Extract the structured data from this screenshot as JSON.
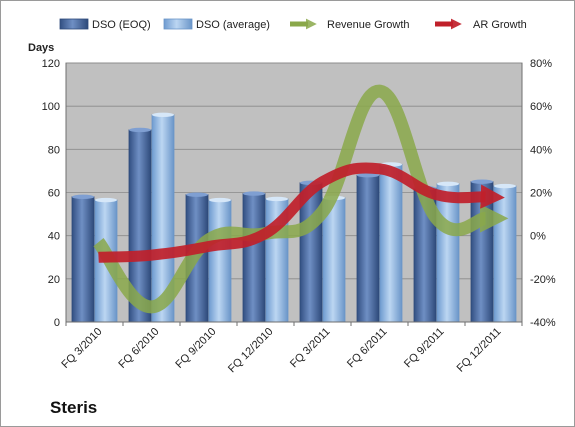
{
  "colors": {
    "dso_eoq": "#4f6fa3",
    "dso_avg": "#8db4e2",
    "revenue_growth": "#8aa84a",
    "ar_growth": "#c0202a",
    "plot_bg": "#c0c0c0"
  },
  "company": "Steris",
  "chart_data": {
    "type": "bar",
    "categories": [
      "FQ 3/2010",
      "FQ 6/2010",
      "FQ 9/2010",
      "FQ 12/2010",
      "FQ 3/2011",
      "FQ 6/2011",
      "FQ 9/2011",
      "FQ 12/2011"
    ],
    "y_left": {
      "label": "Days",
      "min": 0,
      "max": 120,
      "ticks": [
        "0",
        "20",
        "40",
        "60",
        "80",
        "100",
        "120"
      ]
    },
    "y_right": {
      "min": -40,
      "max": 80,
      "ticks": [
        "-40%",
        "-20%",
        "0%",
        "20%",
        "40%",
        "60%",
        "80%"
      ]
    },
    "grid": true,
    "legend_position": "top",
    "series": [
      {
        "name": "DSO (EOQ)",
        "type": "bar",
        "axis": "left",
        "values": [
          58,
          89,
          59,
          59.5,
          64.5,
          68,
          62,
          65
        ]
      },
      {
        "name": "DSO (average)",
        "type": "bar",
        "axis": "left",
        "values": [
          56.5,
          96,
          56.5,
          57,
          57.5,
          73,
          64,
          63
        ]
      },
      {
        "name": "Revenue Growth",
        "type": "line",
        "axis": "right",
        "values": [
          -3,
          -33,
          -2,
          1,
          11,
          67,
          8,
          8
        ]
      },
      {
        "name": "AR Growth",
        "type": "line",
        "axis": "right",
        "values": [
          -10,
          -9,
          -5,
          1,
          25,
          31,
          19,
          18
        ]
      }
    ]
  }
}
